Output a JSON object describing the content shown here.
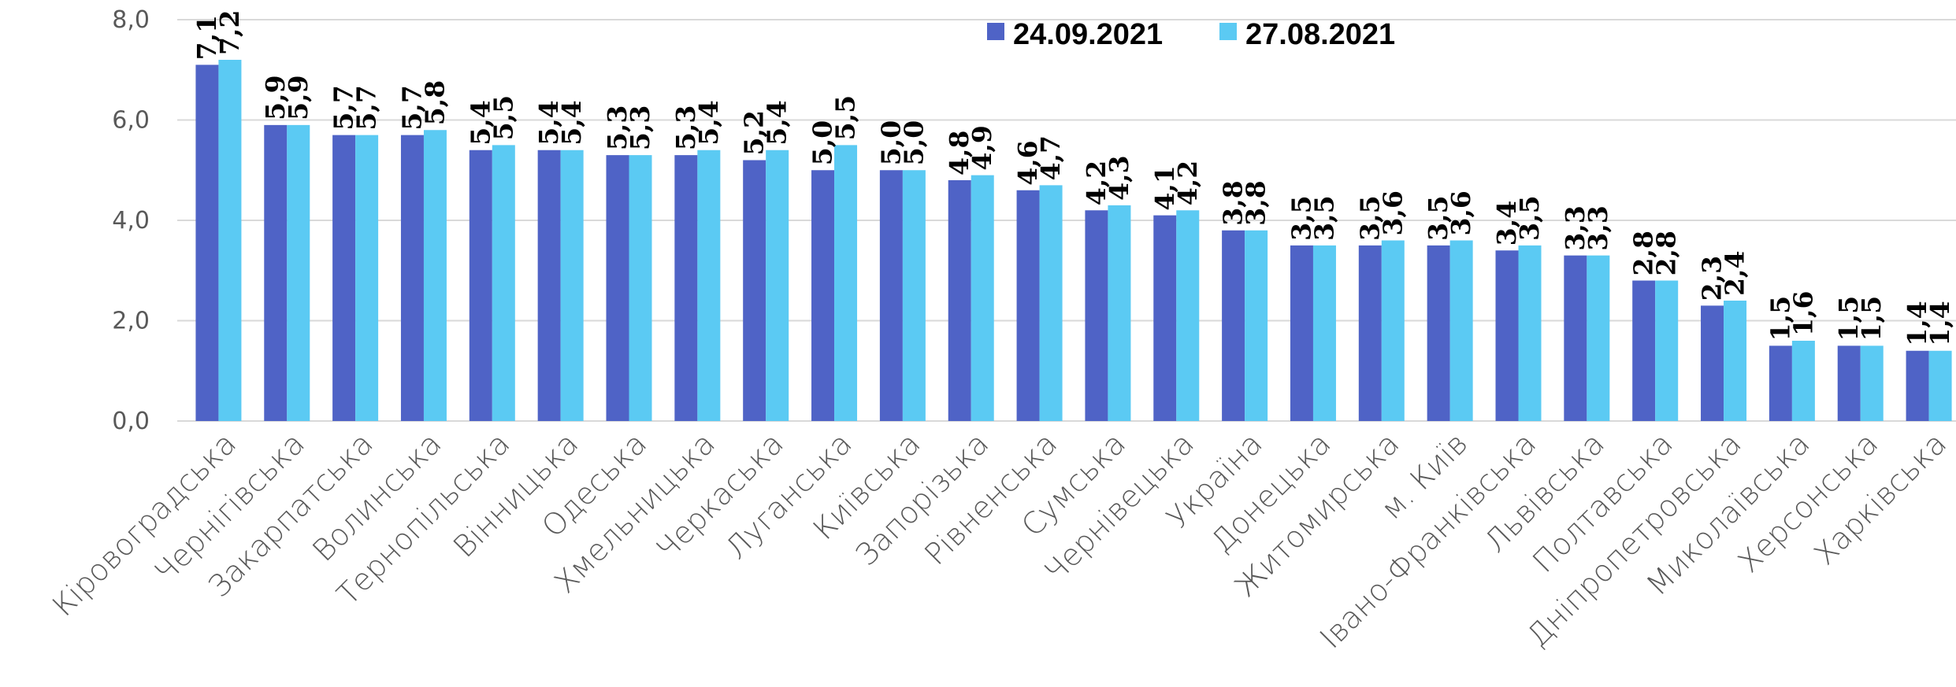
{
  "chart_data": {
    "type": "bar",
    "title": "",
    "xlabel": "",
    "ylabel": "",
    "ylim": [
      0,
      8
    ],
    "yticks": [
      "0,0",
      "2,0",
      "4,0",
      "6,0",
      "8,0"
    ],
    "grid": true,
    "legend_position": "top-right",
    "categories": [
      "Кіровоградська",
      "Чернігівська",
      "Закарпатська",
      "Волинська",
      "Тернопільська",
      "Вінницька",
      "Одеська",
      "Хмельницька",
      "Черкаська",
      "Луганська",
      "Київська",
      "Запорізька",
      "Рівненська",
      "Сумська",
      "Чернівецька",
      "Україна",
      "Донецька",
      "Житомирська",
      "м. Київ",
      "Івано-Франківська",
      "Львівська",
      "Полтавська",
      "Дніпропетровська",
      "Миколаївська",
      "Херсонська",
      "Харківська"
    ],
    "series": [
      {
        "name": "24.09.2021",
        "color": "#4f63c6",
        "values": [
          7.1,
          5.9,
          5.7,
          5.7,
          5.4,
          5.4,
          5.3,
          5.3,
          5.2,
          5.0,
          5.0,
          4.8,
          4.6,
          4.2,
          4.1,
          3.8,
          3.5,
          3.5,
          3.5,
          3.4,
          3.3,
          2.8,
          2.3,
          1.5,
          1.5,
          1.4
        ],
        "labels": [
          "7,1",
          "5,9",
          "5,7",
          "5,7",
          "5,4",
          "5,4",
          "5,3",
          "5,3",
          "5,2",
          "5,0",
          "5,0",
          "4,8",
          "4,6",
          "4,2",
          "4,1",
          "3,8",
          "3,5",
          "3,5",
          "3,5",
          "3,4",
          "3,3",
          "2,8",
          "2,3",
          "1,5",
          "1,5",
          "1,4"
        ]
      },
      {
        "name": "27.08.2021",
        "color": "#5bcaf3",
        "values": [
          7.2,
          5.9,
          5.7,
          5.8,
          5.5,
          5.4,
          5.3,
          5.4,
          5.4,
          5.5,
          5.0,
          4.9,
          4.7,
          4.3,
          4.2,
          3.8,
          3.5,
          3.6,
          3.6,
          3.5,
          3.3,
          2.8,
          2.4,
          1.6,
          1.5,
          1.4
        ],
        "labels": [
          "7,2",
          "5,9",
          "5,7",
          "5,8",
          "5,5",
          "5,4",
          "5,3",
          "5,4",
          "5,4",
          "5,5",
          "5,0",
          "4,9",
          "4,7",
          "4,3",
          "4,2",
          "3,8",
          "3,5",
          "3,6",
          "3,6",
          "3,5",
          "3,3",
          "2,8",
          "2,4",
          "1,6",
          "1,5",
          "1,4"
        ]
      }
    ]
  }
}
